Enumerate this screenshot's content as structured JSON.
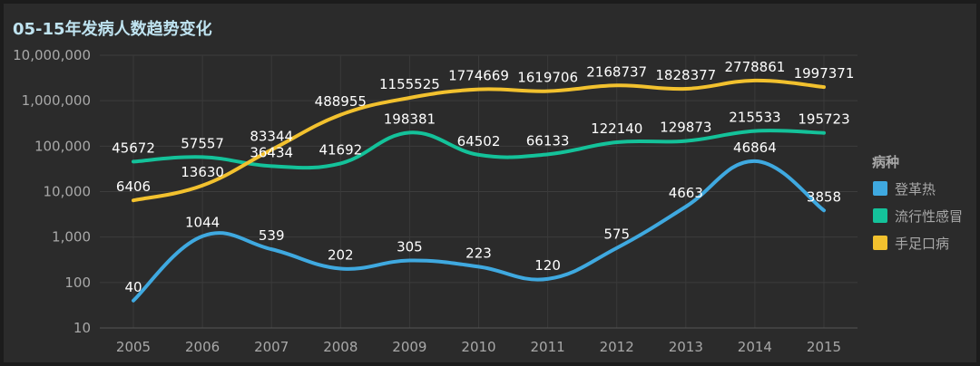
{
  "chart_data": {
    "type": "line",
    "title": "05-15年发病人数趋势变化",
    "xlabel": "",
    "ylabel": "",
    "y_scale": "log",
    "ylim": [
      10,
      10000000
    ],
    "y_ticks": [
      "10",
      "100",
      "1,000",
      "10,000",
      "100,000",
      "1,000,000",
      "10,000,000"
    ],
    "categories": [
      "2005",
      "2006",
      "2007",
      "2008",
      "2009",
      "2010",
      "2011",
      "2012",
      "2013",
      "2014",
      "2015"
    ],
    "legend": {
      "title": "病种",
      "position": "right"
    },
    "grid": true,
    "series": [
      {
        "name": "登革热",
        "color": "#3fa9e0",
        "values": [
          40,
          1044,
          539,
          202,
          305,
          223,
          120,
          575,
          4663,
          46864,
          3858
        ]
      },
      {
        "name": "流行性感冒",
        "color": "#14c29a",
        "values": [
          45672,
          57557,
          36434,
          41692,
          198381,
          64502,
          66133,
          122140,
          129873,
          215533,
          195723
        ]
      },
      {
        "name": "手足口病",
        "color": "#f2c12e",
        "values": [
          6406,
          13630,
          83344,
          488955,
          1155525,
          1774669,
          1619706,
          2168737,
          1828377,
          2778861,
          1997371
        ]
      }
    ]
  }
}
